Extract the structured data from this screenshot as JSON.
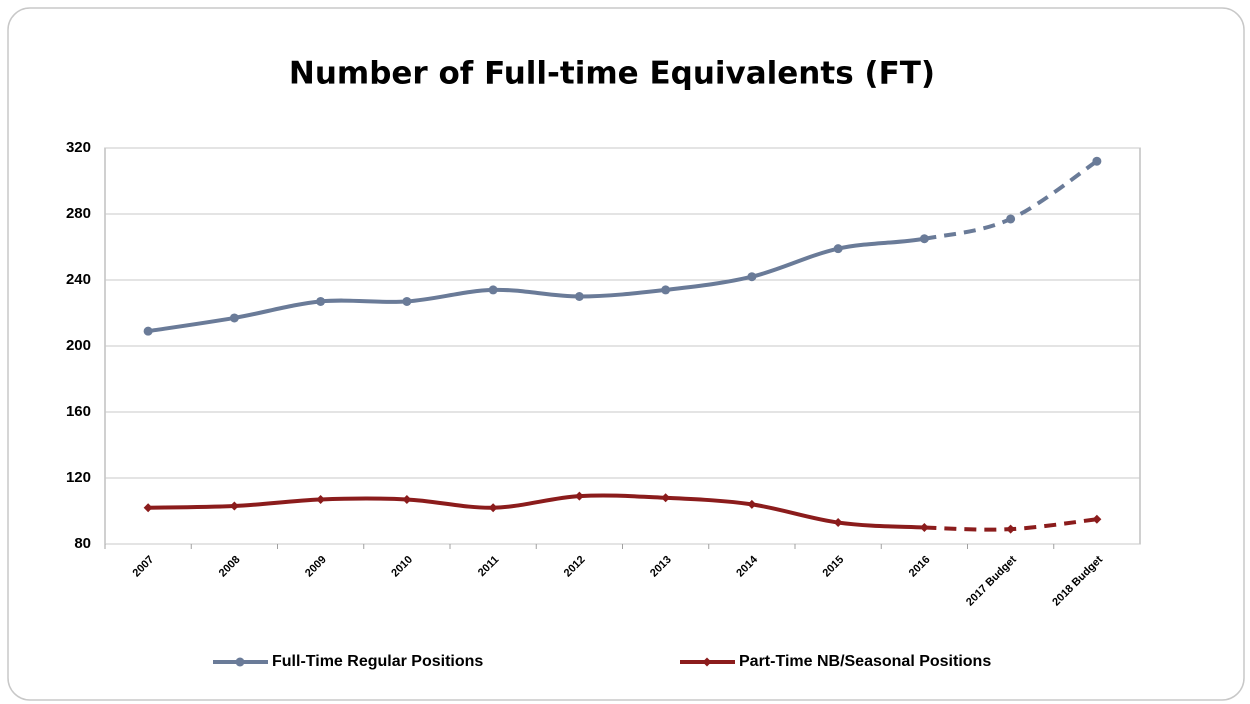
{
  "chart_data": {
    "type": "line",
    "title": "Number of Full-time Equivalents (FT)",
    "categories": [
      "2007",
      "2008",
      "2009",
      "2010",
      "2011",
      "2012",
      "2013",
      "2014",
      "2015",
      "2016",
      "2017 Budget",
      "2018 Budget"
    ],
    "series": [
      {
        "name": "Full-Time Regular Positions",
        "color": "#6a7b98",
        "marker": "circle",
        "values": [
          209,
          217,
          227,
          227,
          234,
          230,
          234,
          242,
          259,
          265,
          277,
          312
        ]
      },
      {
        "name": "Part-Time NB/Seasonal Positions",
        "color": "#8b1c1c",
        "marker": "diamond",
        "values": [
          102,
          103,
          107,
          107,
          102,
          109,
          108,
          104,
          93,
          90,
          89,
          95
        ]
      }
    ],
    "ylim": [
      80,
      320
    ],
    "yticks": [
      80,
      120,
      160,
      200,
      240,
      280,
      320
    ],
    "grid": true,
    "smooth": true,
    "dashed_from_index": 9,
    "legend": "bottom"
  }
}
